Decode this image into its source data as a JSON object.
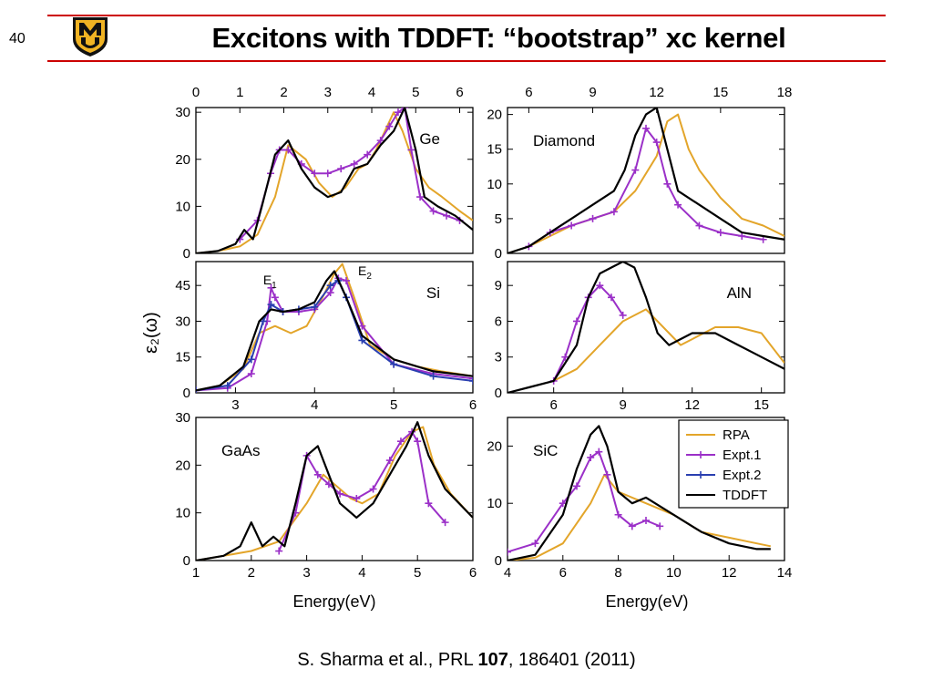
{
  "slide": {
    "number": "40",
    "title": "Excitons with TDDFT: “bootstrap” xc kernel",
    "logo_text": "MU",
    "citation": {
      "prefix": "S. Sharma et al., PRL ",
      "volume": "107",
      "suffix": ", 186401 (2011)"
    },
    "colors": {
      "rule": "#cc0000",
      "logo_black": "#111111",
      "logo_gold": "#f0b323"
    }
  },
  "chart_data": {
    "type": "line",
    "ylabel": "ε₂(ω)",
    "xlabel": "Energy(eV)",
    "series_styles": {
      "RPA": {
        "color": "#e3a52a",
        "dash": ""
      },
      "Expt.1": {
        "color": "#9b30c8",
        "dash": "",
        "marker": "plus"
      },
      "Expt.2": {
        "color": "#2a3fb0",
        "dash": "",
        "marker": "plus"
      },
      "TDDFT": {
        "color": "#000000",
        "dash": ""
      }
    },
    "legend": {
      "placement": "top-right of SiC panel",
      "entries": [
        "RPA",
        "Expt.1",
        "Expt.2",
        "TDDFT"
      ]
    },
    "panels": [
      {
        "id": "ge",
        "label": "Ge",
        "label_pos": "top-right",
        "xlim": [
          0,
          6.3
        ],
        "ylim": [
          0,
          31
        ],
        "xticks_top": [
          0,
          1,
          2,
          3,
          4,
          5,
          6
        ],
        "xticks_bottom": [],
        "yticks": [
          0,
          10,
          20,
          30
        ],
        "series": [
          {
            "name": "RPA",
            "x": [
              0,
              0.5,
              1,
              1.4,
              1.8,
              2.1,
              2.5,
              2.8,
              3.1,
              3.4,
              3.7,
              3.9,
              4.1,
              4.3,
              4.5,
              4.7,
              5,
              5.3,
              5.6,
              6,
              6.3
            ],
            "y": [
              0,
              0.5,
              1.5,
              4,
              12,
              23,
              20,
              15,
              12,
              14,
              18,
              19,
              22,
              26,
              30,
              26,
              18,
              14,
              12,
              9,
              7
            ]
          },
          {
            "name": "Expt.1",
            "x": [
              1,
              1.4,
              1.7,
              1.9,
              2.1,
              2.4,
              2.7,
              3,
              3.3,
              3.6,
              3.9,
              4.2,
              4.4,
              4.6,
              4.75,
              4.9,
              5.1,
              5.4,
              5.7,
              6
            ],
            "y": [
              3,
              7,
              17,
              22,
              22,
              19,
              17,
              17,
              18,
              19,
              21,
              24,
              27,
              30,
              31,
              22,
              12,
              9,
              8,
              7
            ]
          },
          {
            "name": "TDDFT",
            "x": [
              0,
              0.5,
              0.9,
              1.1,
              1.3,
              1.5,
              1.8,
              2.1,
              2.4,
              2.7,
              3,
              3.3,
              3.6,
              3.9,
              4.2,
              4.5,
              4.75,
              5,
              5.2,
              5.5,
              5.9,
              6.3
            ],
            "y": [
              0,
              0.5,
              2,
              5,
              3,
              10,
              21,
              24,
              18,
              14,
              12,
              13,
              18,
              19,
              23,
              26,
              31,
              22,
              12,
              10,
              8,
              5
            ]
          }
        ]
      },
      {
        "id": "diamond",
        "label": "Diamond",
        "label_pos": "top-left",
        "xlim": [
          5,
          18
        ],
        "ylim": [
          0,
          21
        ],
        "xticks_top": [
          6,
          9,
          12,
          15,
          18
        ],
        "xticks_bottom": [],
        "yticks": [
          0,
          5,
          10,
          15,
          20
        ],
        "series": [
          {
            "name": "RPA",
            "x": [
              5,
              6,
              7,
              8,
              9,
              10,
              11,
              12,
              12.5,
              13,
              13.5,
              14,
              15,
              16,
              17,
              18
            ],
            "y": [
              0,
              1,
              2.5,
              4,
              5,
              6,
              9,
              14,
              19,
              20,
              15,
              12,
              8,
              5,
              4,
              2.5
            ]
          },
          {
            "name": "Expt.1",
            "x": [
              6,
              7,
              8,
              9,
              10,
              11,
              11.5,
              12,
              12.5,
              13,
              14,
              15,
              16,
              17
            ],
            "y": [
              1,
              3,
              4,
              5,
              6,
              12,
              18,
              16,
              10,
              7,
              4,
              3,
              2.5,
              2
            ]
          },
          {
            "name": "TDDFT",
            "x": [
              5,
              6,
              7,
              8,
              9,
              10,
              10.5,
              11,
              11.5,
              12,
              12.5,
              13,
              14,
              15,
              16,
              17,
              18
            ],
            "y": [
              0,
              1,
              3,
              5,
              7,
              9,
              12,
              17,
              20,
              21,
              15,
              9,
              7,
              5,
              3,
              2.5,
              2
            ]
          }
        ]
      },
      {
        "id": "si",
        "label": "Si",
        "label_pos": "top-right",
        "xlim": [
          2.5,
          6
        ],
        "ylim": [
          0,
          55
        ],
        "xticks_top": [],
        "xticks_bottom": [
          3,
          4,
          5,
          6
        ],
        "yticks": [
          0,
          15,
          30,
          45
        ],
        "annotations": [
          "E1",
          "E2"
        ],
        "series": [
          {
            "name": "RPA",
            "x": [
              2.5,
              2.8,
              3.1,
              3.3,
              3.5,
              3.7,
              3.9,
              4.1,
              4.25,
              4.35,
              4.5,
              4.7,
              5,
              5.3,
              5.6,
              6
            ],
            "y": [
              1,
              3,
              10,
              25,
              28,
              25,
              28,
              40,
              50,
              54,
              40,
              20,
              14,
              11,
              9,
              7
            ]
          },
          {
            "name": "Expt.1",
            "x": [
              2.5,
              2.9,
              3.2,
              3.4,
              3.45,
              3.5,
              3.6,
              3.8,
              4,
              4.2,
              4.3,
              4.4,
              4.6,
              5,
              5.5,
              6
            ],
            "y": [
              1,
              2,
              8,
              30,
              44,
              40,
              34,
              34,
              35,
              42,
              48,
              47,
              28,
              12,
              8,
              6
            ]
          },
          {
            "name": "Expt.2",
            "x": [
              2.5,
              2.9,
              3.2,
              3.35,
              3.45,
              3.6,
              3.8,
              4,
              4.2,
              4.3,
              4.4,
              4.6,
              5,
              5.5,
              6
            ],
            "y": [
              1,
              3,
              14,
              30,
              37,
              34,
              35,
              36,
              45,
              47,
              40,
              22,
              12,
              7,
              5
            ]
          },
          {
            "name": "TDDFT",
            "x": [
              2.5,
              2.8,
              3.1,
              3.3,
              3.45,
              3.6,
              3.8,
              4,
              4.15,
              4.25,
              4.4,
              4.6,
              5,
              5.5,
              6
            ],
            "y": [
              1,
              3,
              11,
              30,
              35,
              34,
              35,
              38,
              47,
              51,
              40,
              24,
              14,
              9,
              7
            ]
          }
        ]
      },
      {
        "id": "aln",
        "label": "AlN",
        "label_pos": "top-right",
        "xlim": [
          4,
          16
        ],
        "ylim": [
          0,
          11
        ],
        "xticks_top": [],
        "xticks_bottom": [
          6,
          9,
          12,
          15
        ],
        "yticks": [
          0,
          3,
          6,
          9
        ],
        "series": [
          {
            "name": "RPA",
            "x": [
              6,
              7,
              8,
              9,
              10,
              11,
              11.5,
              12,
              13,
              14,
              15,
              16
            ],
            "y": [
              1,
              2,
              4,
              6,
              7,
              5,
              4,
              4.5,
              5.5,
              5.5,
              5,
              2.5
            ]
          },
          {
            "name": "Expt.1",
            "x": [
              6,
              6.5,
              7,
              7.5,
              8,
              8.5,
              9
            ],
            "y": [
              1,
              3,
              6,
              8,
              9,
              8,
              6.5
            ]
          },
          {
            "name": "TDDFT",
            "x": [
              4,
              5,
              6,
              7,
              7.5,
              8,
              8.5,
              9,
              9.5,
              10,
              10.5,
              11,
              12,
              13,
              14,
              15,
              16
            ],
            "y": [
              0,
              0.5,
              1,
              4,
              8,
              10,
              10.5,
              11,
              10.5,
              8,
              5,
              4,
              5,
              5,
              4,
              3,
              2
            ]
          }
        ]
      },
      {
        "id": "gaas",
        "label": "GaAs",
        "label_pos": "top-left",
        "xlim": [
          1,
          6
        ],
        "ylim": [
          0,
          30
        ],
        "xticks_top": [],
        "xticks_bottom": [
          1,
          2,
          3,
          4,
          5,
          6
        ],
        "yticks": [
          0,
          10,
          20,
          30
        ],
        "series": [
          {
            "name": "RPA",
            "x": [
              1,
              1.5,
              2,
              2.5,
              3,
              3.3,
              3.5,
              3.8,
              4,
              4.3,
              4.6,
              4.9,
              5.1,
              5.3,
              5.6,
              6
            ],
            "y": [
              0,
              1,
              2,
              4,
              12,
              18,
              16,
              13,
              12,
              14,
              22,
              27,
              28,
              20,
              14,
              9
            ]
          },
          {
            "name": "Expt.1",
            "x": [
              2.5,
              2.8,
              3,
              3.2,
              3.4,
              3.6,
              3.9,
              4.2,
              4.5,
              4.7,
              4.9,
              5,
              5.2,
              5.5
            ],
            "y": [
              2,
              10,
              22,
              18,
              16,
              14,
              13,
              15,
              21,
              25,
              27,
              25,
              12,
              8
            ]
          },
          {
            "name": "TDDFT",
            "x": [
              1,
              1.5,
              1.8,
              2,
              2.2,
              2.4,
              2.6,
              2.8,
              3,
              3.2,
              3.4,
              3.6,
              3.9,
              4.2,
              4.5,
              4.8,
              5,
              5.2,
              5.5,
              6
            ],
            "y": [
              0,
              1,
              3,
              8,
              3,
              5,
              3,
              12,
              22,
              24,
              18,
              12,
              9,
              12,
              18,
              24,
              29,
              22,
              15,
              9
            ]
          }
        ]
      },
      {
        "id": "sic",
        "label": "SiC",
        "label_pos": "top-left",
        "xlim": [
          4,
          14
        ],
        "ylim": [
          0,
          25
        ],
        "xticks_top": [],
        "xticks_bottom": [
          4,
          6,
          8,
          10,
          12,
          14
        ],
        "yticks": [
          0,
          10,
          20
        ],
        "series": [
          {
            "name": "RPA",
            "x": [
              4,
              5,
              6,
              7,
              7.5,
              8,
              8.5,
              9,
              10,
              11,
              12,
              13,
              13.5
            ],
            "y": [
              0,
              0.5,
              3,
              10,
              15,
              12,
              11,
              10,
              8,
              5,
              4,
              3,
              2.5
            ]
          },
          {
            "name": "Expt.1",
            "x": [
              4,
              5,
              6,
              6.5,
              7,
              7.3,
              7.6,
              8,
              8.5,
              9,
              9.5
            ],
            "y": [
              1.5,
              3,
              10,
              13,
              18,
              19,
              15,
              8,
              6,
              7,
              6
            ]
          },
          {
            "name": "TDDFT",
            "x": [
              4,
              5,
              6,
              6.5,
              7,
              7.3,
              7.6,
              8,
              8.5,
              9,
              10,
              11,
              12,
              13,
              13.5
            ],
            "y": [
              0,
              1,
              8,
              16,
              22,
              23.5,
              20,
              12,
              10,
              11,
              8,
              5,
              3,
              2,
              2
            ]
          }
        ]
      }
    ]
  }
}
